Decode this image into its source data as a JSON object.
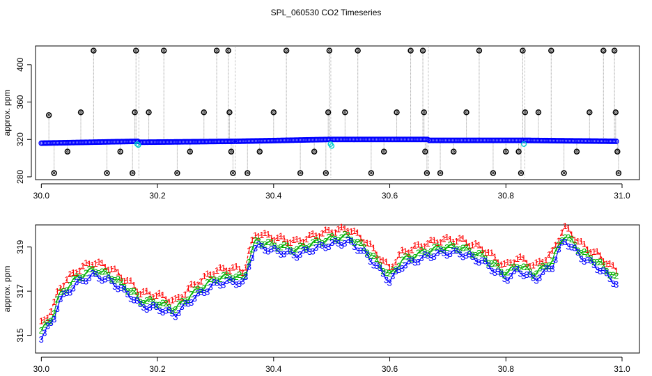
{
  "chart_data": [
    {
      "type": "scatter",
      "title": "SPL_060530  CO2 Timeseries",
      "ylabel": "approx. ppm",
      "xlim": [
        29.99,
        31.03
      ],
      "ylim": [
        277,
        420
      ],
      "x_ticks": [
        30.0,
        30.2,
        30.4,
        30.6,
        30.8,
        31.0
      ],
      "x_tick_labels": [
        "30.0",
        "30.2",
        "30.4",
        "30.6",
        "30.8",
        "31.0"
      ],
      "y_ticks": [
        280,
        320,
        360,
        400
      ],
      "y_tick_labels": [
        "280",
        "320",
        "360",
        "400"
      ],
      "colors": {
        "baseline": "#0000ff",
        "spike": "#000000",
        "vline": "#999999",
        "teal": "#00cccc"
      },
      "segments": [
        {
          "x": [
            30.0,
            30.166
          ],
          "y": [
            316,
            318
          ]
        },
        {
          "x": [
            30.17,
            30.332
          ],
          "y": [
            317,
            318
          ]
        },
        {
          "x": [
            30.336,
            30.497
          ],
          "y": [
            318,
            320
          ]
        },
        {
          "x": [
            30.5,
            30.665
          ],
          "y": [
            320,
            320
          ]
        },
        {
          "x": [
            30.668,
            30.831
          ],
          "y": [
            319,
            319
          ]
        },
        {
          "x": [
            30.834,
            30.99
          ],
          "y": [
            319,
            318
          ]
        }
      ],
      "spikes": [
        {
          "x": 30.013,
          "y": 346
        },
        {
          "x": 30.022,
          "y": 284
        },
        {
          "x": 30.045,
          "y": 307
        },
        {
          "x": 30.068,
          "y": 349
        },
        {
          "x": 30.09,
          "y": 415
        },
        {
          "x": 30.113,
          "y": 284
        },
        {
          "x": 30.136,
          "y": 307
        },
        {
          "x": 30.157,
          "y": 284
        },
        {
          "x": 30.161,
          "y": 349
        },
        {
          "x": 30.163,
          "y": 415
        },
        {
          "x": 30.185,
          "y": 349
        },
        {
          "x": 30.211,
          "y": 415
        },
        {
          "x": 30.234,
          "y": 284
        },
        {
          "x": 30.256,
          "y": 307
        },
        {
          "x": 30.28,
          "y": 349
        },
        {
          "x": 30.302,
          "y": 415
        },
        {
          "x": 30.322,
          "y": 415
        },
        {
          "x": 30.324,
          "y": 349
        },
        {
          "x": 30.327,
          "y": 307
        },
        {
          "x": 30.33,
          "y": 284
        },
        {
          "x": 30.355,
          "y": 284
        },
        {
          "x": 30.376,
          "y": 307
        },
        {
          "x": 30.4,
          "y": 349
        },
        {
          "x": 30.422,
          "y": 415
        },
        {
          "x": 30.446,
          "y": 284
        },
        {
          "x": 30.47,
          "y": 307
        },
        {
          "x": 30.49,
          "y": 284
        },
        {
          "x": 30.494,
          "y": 349
        },
        {
          "x": 30.496,
          "y": 415
        },
        {
          "x": 30.523,
          "y": 349
        },
        {
          "x": 30.545,
          "y": 415
        },
        {
          "x": 30.568,
          "y": 284
        },
        {
          "x": 30.59,
          "y": 307
        },
        {
          "x": 30.612,
          "y": 349
        },
        {
          "x": 30.636,
          "y": 415
        },
        {
          "x": 30.657,
          "y": 415
        },
        {
          "x": 30.659,
          "y": 349
        },
        {
          "x": 30.661,
          "y": 307
        },
        {
          "x": 30.664,
          "y": 284
        },
        {
          "x": 30.687,
          "y": 284
        },
        {
          "x": 30.71,
          "y": 307
        },
        {
          "x": 30.732,
          "y": 349
        },
        {
          "x": 30.754,
          "y": 415
        },
        {
          "x": 30.778,
          "y": 284
        },
        {
          "x": 30.8,
          "y": 307
        },
        {
          "x": 30.822,
          "y": 307
        },
        {
          "x": 30.826,
          "y": 284
        },
        {
          "x": 30.829,
          "y": 415
        },
        {
          "x": 30.833,
          "y": 349
        },
        {
          "x": 30.856,
          "y": 349
        },
        {
          "x": 30.878,
          "y": 415
        },
        {
          "x": 30.9,
          "y": 284
        },
        {
          "x": 30.922,
          "y": 307
        },
        {
          "x": 30.944,
          "y": 349
        },
        {
          "x": 30.968,
          "y": 415
        },
        {
          "x": 30.987,
          "y": 415
        },
        {
          "x": 30.989,
          "y": 349
        },
        {
          "x": 30.992,
          "y": 307
        },
        {
          "x": 30.994,
          "y": 284
        }
      ],
      "teal_points": [
        {
          "x": 30.165,
          "y": 315
        },
        {
          "x": 30.167,
          "y": 314
        },
        {
          "x": 30.498,
          "y": 315
        },
        {
          "x": 30.5,
          "y": 313
        },
        {
          "x": 30.831,
          "y": 315
        }
      ]
    },
    {
      "type": "line",
      "ylabel": "approx. ppm",
      "xlim": [
        29.99,
        31.03
      ],
      "ylim": [
        314.2,
        320.0
      ],
      "x_ticks": [
        30.0,
        30.2,
        30.4,
        30.6,
        30.8,
        31.0
      ],
      "x_tick_labels": [
        "30.0",
        "30.2",
        "30.4",
        "30.6",
        "30.8",
        "31.0"
      ],
      "y_ticks": [
        315,
        317,
        319
      ],
      "y_tick_labels": [
        "315",
        "317",
        "319"
      ],
      "series": [
        {
          "label": "1",
          "color": "#ff0000",
          "offset": 0.35,
          "dashed": true
        },
        {
          "label": "2",
          "color": "#00b000",
          "offset": 0.0,
          "dashed": false
        },
        {
          "label": "3",
          "color": "#0000ff",
          "offset": -0.25,
          "dashed": false
        }
      ],
      "x": [
        30.0,
        30.02,
        30.03,
        30.06,
        30.09,
        30.12,
        30.16,
        30.17,
        30.2,
        30.23,
        30.26,
        30.3,
        30.33,
        30.35,
        30.36,
        30.37,
        30.4,
        30.44,
        30.47,
        30.5,
        30.53,
        30.56,
        30.6,
        30.62,
        30.66,
        30.69,
        30.72,
        30.76,
        30.8,
        30.82,
        30.85,
        30.88,
        30.9,
        30.93,
        30.96,
        30.99
      ],
      "y": [
        315.2,
        315.9,
        316.8,
        317.6,
        318.0,
        317.7,
        316.9,
        316.6,
        316.5,
        316.2,
        316.9,
        317.6,
        317.7,
        317.6,
        318.7,
        319.3,
        319.1,
        318.9,
        319.2,
        319.4,
        319.5,
        318.9,
        317.7,
        318.4,
        318.8,
        319.0,
        319.0,
        318.6,
        317.8,
        318.2,
        317.8,
        318.4,
        319.6,
        318.8,
        318.3,
        317.6
      ]
    }
  ]
}
